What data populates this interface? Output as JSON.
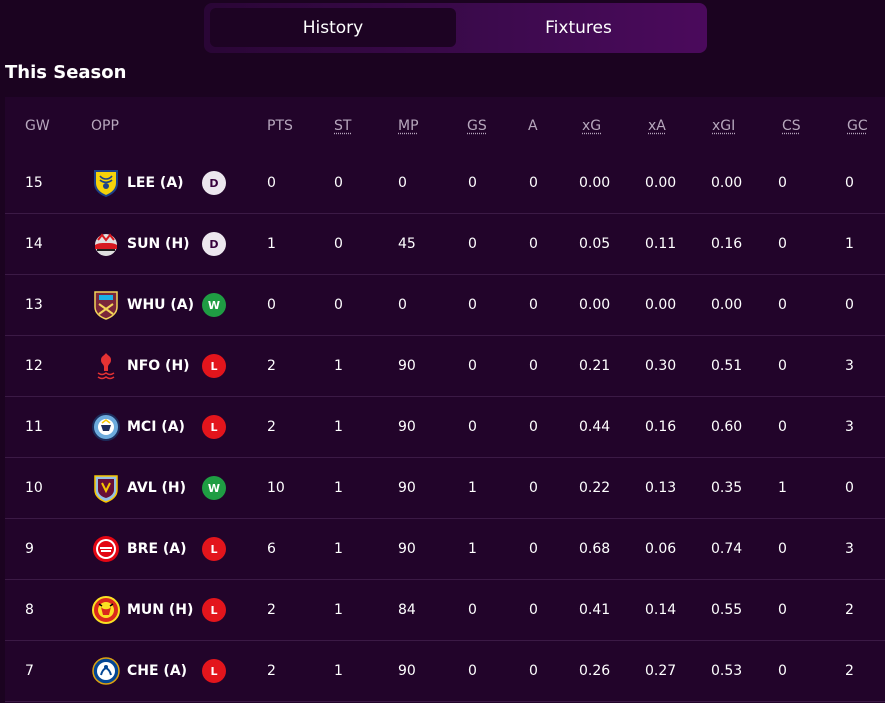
{
  "tabs": {
    "history": "History",
    "fixtures": "Fixtures"
  },
  "section_title": "This Season",
  "columns": [
    "GW",
    "OPP",
    "PTS",
    "ST",
    "MP",
    "GS",
    "A",
    "xG",
    "xA",
    "xGI",
    "CS",
    "GC"
  ],
  "rows": [
    {
      "gw": "15",
      "opp": "LEE (A)",
      "crest": "leeds-crest-icon",
      "result": "D",
      "pts": "0",
      "st": "0",
      "mp": "0",
      "gs": "0",
      "a": "0",
      "xg": "0.00",
      "xa": "0.00",
      "xgi": "0.00",
      "cs": "0",
      "gc": "0"
    },
    {
      "gw": "14",
      "opp": "SUN (H)",
      "crest": "sunderland-crest-icon",
      "result": "D",
      "pts": "1",
      "st": "0",
      "mp": "45",
      "gs": "0",
      "a": "0",
      "xg": "0.05",
      "xa": "0.11",
      "xgi": "0.16",
      "cs": "0",
      "gc": "1"
    },
    {
      "gw": "13",
      "opp": "WHU (A)",
      "crest": "west-ham-crest-icon",
      "result": "W",
      "pts": "0",
      "st": "0",
      "mp": "0",
      "gs": "0",
      "a": "0",
      "xg": "0.00",
      "xa": "0.00",
      "xgi": "0.00",
      "cs": "0",
      "gc": "0"
    },
    {
      "gw": "12",
      "opp": "NFO (H)",
      "crest": "nottm-forest-crest-icon",
      "result": "L",
      "pts": "2",
      "st": "1",
      "mp": "90",
      "gs": "0",
      "a": "0",
      "xg": "0.21",
      "xa": "0.30",
      "xgi": "0.51",
      "cs": "0",
      "gc": "3"
    },
    {
      "gw": "11",
      "opp": "MCI (A)",
      "crest": "man-city-crest-icon",
      "result": "L",
      "pts": "2",
      "st": "1",
      "mp": "90",
      "gs": "0",
      "a": "0",
      "xg": "0.44",
      "xa": "0.16",
      "xgi": "0.60",
      "cs": "0",
      "gc": "3"
    },
    {
      "gw": "10",
      "opp": "AVL (H)",
      "crest": "aston-villa-crest-icon",
      "result": "W",
      "pts": "10",
      "st": "1",
      "mp": "90",
      "gs": "1",
      "a": "0",
      "xg": "0.22",
      "xa": "0.13",
      "xgi": "0.35",
      "cs": "1",
      "gc": "0"
    },
    {
      "gw": "9",
      "opp": "BRE (A)",
      "crest": "brentford-crest-icon",
      "result": "L",
      "pts": "6",
      "st": "1",
      "mp": "90",
      "gs": "1",
      "a": "0",
      "xg": "0.68",
      "xa": "0.06",
      "xgi": "0.74",
      "cs": "0",
      "gc": "3"
    },
    {
      "gw": "8",
      "opp": "MUN (H)",
      "crest": "man-utd-crest-icon",
      "result": "L",
      "pts": "2",
      "st": "1",
      "mp": "84",
      "gs": "0",
      "a": "0",
      "xg": "0.41",
      "xa": "0.14",
      "xgi": "0.55",
      "cs": "0",
      "gc": "2"
    },
    {
      "gw": "7",
      "opp": "CHE (A)",
      "crest": "chelsea-crest-icon",
      "result": "L",
      "pts": "2",
      "st": "1",
      "mp": "90",
      "gs": "0",
      "a": "0",
      "xg": "0.26",
      "xa": "0.27",
      "xgi": "0.53",
      "cs": "0",
      "gc": "2"
    }
  ],
  "colors": {
    "background": "#1b0320",
    "result_win": "#1f9d43",
    "result_loss": "#e3151c",
    "result_draw": "#ece6ee"
  }
}
